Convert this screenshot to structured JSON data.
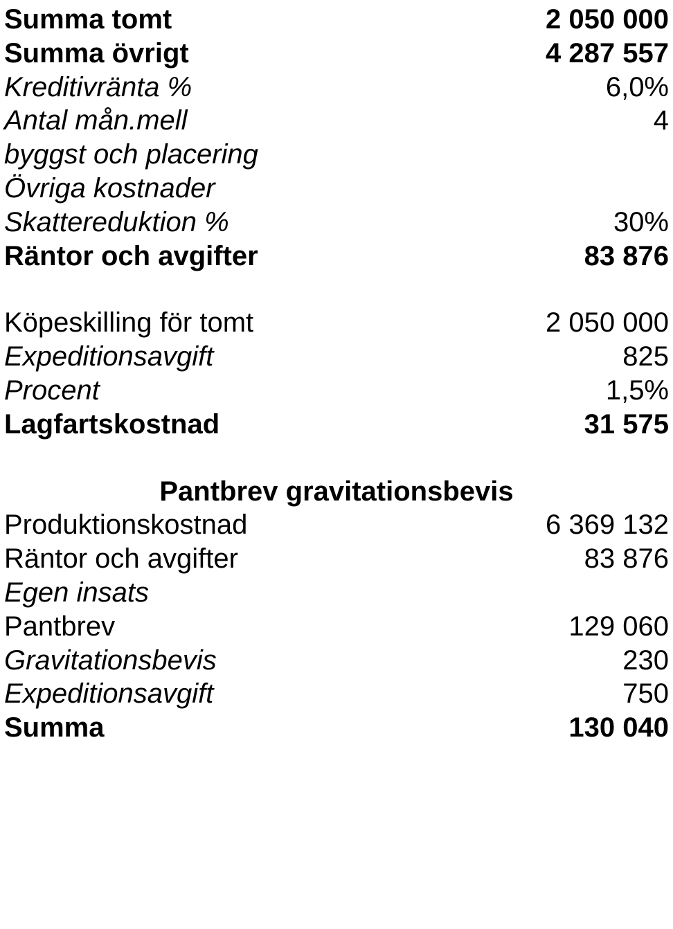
{
  "section1": {
    "rows": [
      {
        "label": "Summa tomt",
        "value": "2 050 000",
        "labelBold": true,
        "valBold": true
      },
      {
        "label": "Summa övrigt",
        "value": "4 287 557",
        "labelBold": true,
        "valBold": true
      },
      {
        "label": "Kreditivränta %",
        "value": "6,0%",
        "labelItalic": true
      },
      {
        "label": "Antal mån.mell\nbyggst och placering",
        "value": "4",
        "labelItalic": true
      },
      {
        "label": "Övriga kostnader",
        "value": "",
        "labelItalic": true
      },
      {
        "label": "Skattereduktion %",
        "value": "30%",
        "labelItalic": true
      },
      {
        "label": "Räntor och avgifter",
        "value": "83 876",
        "labelBold": true,
        "valBold": true
      }
    ]
  },
  "section2": {
    "rows": [
      {
        "label": "Köpeskilling för tomt",
        "value": "2 050 000"
      },
      {
        "label": "Expeditionsavgift",
        "value": "825",
        "labelItalic": true
      },
      {
        "label": "Procent",
        "value": "1,5%",
        "labelItalic": true
      },
      {
        "label": "Lagfartskostnad",
        "value": "31 575",
        "labelBold": true,
        "valBold": true
      }
    ]
  },
  "section3": {
    "heading": "Pantbrev gravitationsbevis",
    "rows": [
      {
        "label": "Produktionskostnad",
        "value": "6 369 132"
      },
      {
        "label": "Räntor och avgifter",
        "value": "83 876"
      },
      {
        "label": "Egen insats",
        "value": "",
        "labelItalic": true
      },
      {
        "label": "Pantbrev",
        "value": "129 060"
      },
      {
        "label": "Gravitationsbevis",
        "value": "230",
        "labelItalic": true
      },
      {
        "label": "Expeditionsavgift",
        "value": "750",
        "labelItalic": true
      },
      {
        "label": "Summa",
        "value": "130 040",
        "labelBold": true,
        "valBold": true
      }
    ]
  }
}
